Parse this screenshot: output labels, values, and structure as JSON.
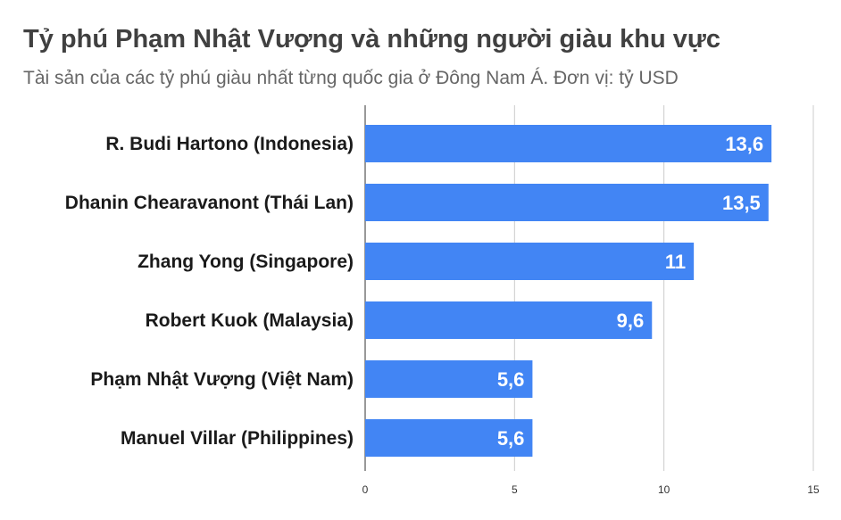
{
  "chart_data": {
    "type": "bar",
    "orientation": "horizontal",
    "title": "Tỷ phú Phạm Nhật Vượng và những người giàu khu vực",
    "subtitle": "Tài sản của các tỷ phú giàu nhất từng quốc gia ở Đông Nam Á. Đơn vị: tỷ USD",
    "categories": [
      "R. Budi Hartono (Indonesia)",
      "Dhanin Chearavanont (Thái Lan)",
      "Zhang Yong (Singapore)",
      "Robert Kuok (Malaysia)",
      "Phạm Nhật Vượng (Việt Nam)",
      "Manuel Villar (Philippines)"
    ],
    "values": [
      13.6,
      13.5,
      11,
      9.6,
      5.6,
      5.6
    ],
    "data_labels": [
      "13,6",
      "13,5",
      "11",
      "9,6",
      "5,6",
      "5,6"
    ],
    "xlim": [
      0,
      15
    ],
    "x_ticks": [
      0,
      5,
      10,
      15
    ],
    "grid": true,
    "legend": "none",
    "bar_color": "#4285f4",
    "grid_color": "#cccccc"
  }
}
